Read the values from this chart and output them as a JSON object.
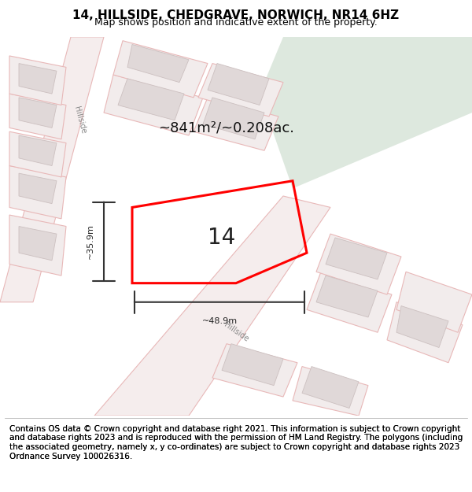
{
  "title": "14, HILLSIDE, CHEDGRAVE, NORWICH, NR14 6HZ",
  "subtitle": "Map shows position and indicative extent of the property.",
  "footer": "Contains OS data © Crown copyright and database right 2021. This information is subject to Crown copyright and database rights 2023 and is reproduced with the permission of HM Land Registry. The polygons (including the associated geometry, namely x, y co-ordinates) are subject to Crown copyright and database rights 2023 Ordnance Survey 100026316.",
  "area_label": "~841m²/~0.208ac.",
  "number_label": "14",
  "width_label": "~48.9m",
  "height_label": "~35.9m",
  "bg_map_color": "#f5f0f0",
  "road_color": "#f0d8d8",
  "road_line_color": "#e8b8b8",
  "building_color": "#e8e0e0",
  "building_line_color": "#ddc8c8",
  "green_area_color": "#dde8de",
  "plot_color": "#ff0000",
  "plot_fill": "none",
  "street_label": "Hillside",
  "title_fontsize": 11,
  "subtitle_fontsize": 9,
  "footer_fontsize": 7.5
}
